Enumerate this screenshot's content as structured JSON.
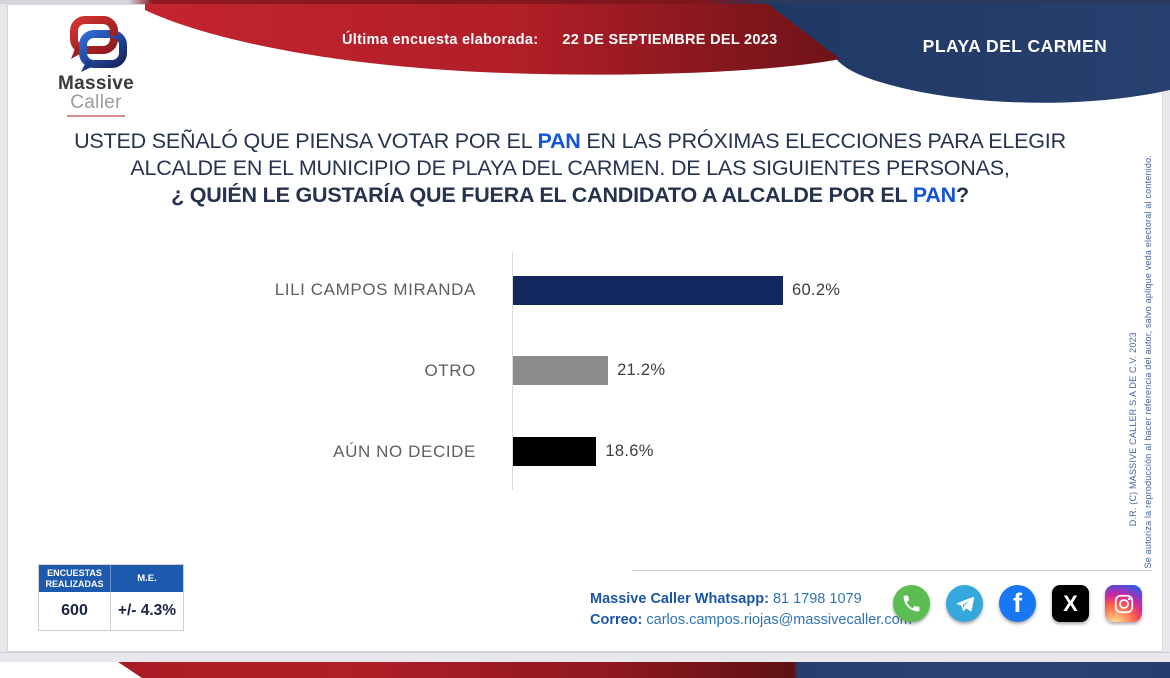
{
  "header": {
    "brand_line1": "Massive",
    "brand_line2": "Caller",
    "banner_label": "Última encuesta elaborada:",
    "banner_date": "22 DE SEPTIEMBRE DEL 2023",
    "location": "PLAYA DEL CARMEN"
  },
  "question": {
    "line1_pre": "USTED SEÑALÓ QUE PIENSA VOTAR POR EL ",
    "line1_party": "PAN",
    "line1_post": " EN LAS PRÓXIMAS ELECCIONES PARA ELEGIR",
    "line2": "ALCALDE EN EL MUNICIPIO DE PLAYA DEL CARMEN. DE LAS SIGUIENTES PERSONAS,",
    "line3_pre": "¿ QUIÉN LE GUSTARÍA QUE FUERA EL CANDIDATO A ALCALDE POR EL ",
    "line3_party": "PAN",
    "line3_post": "?"
  },
  "chart_data": {
    "type": "bar",
    "orientation": "horizontal",
    "categories": [
      "LILI CAMPOS MIRANDA",
      "OTRO",
      "AÚN NO DECIDE"
    ],
    "values": [
      60.2,
      21.2,
      18.6
    ],
    "value_labels": [
      "60.2%",
      "21.2%",
      "18.6%"
    ],
    "bar_colors": [
      "#12285f",
      "#8c8c8c",
      "#000000"
    ],
    "xlim": [
      0,
      100
    ],
    "grid": false,
    "legend": false,
    "title": ""
  },
  "stats": {
    "col1_header": "ENCUESTAS REALIZADAS",
    "col2_header": "M.E.",
    "col1_value": "600",
    "col2_value": "+/- 4.3%"
  },
  "contact": {
    "whatsapp_label": "Massive Caller Whatsapp:",
    "whatsapp_number": "81 1798 1079",
    "email_label": "Correo:",
    "email": "carlos.campos.riojas@massivecaller.com"
  },
  "social": {
    "icons": [
      "whatsapp",
      "telegram",
      "facebook",
      "x",
      "instagram"
    ]
  },
  "copyright": {
    "rights": "D.R. (C) MASSIVE CALLER S.A DE C.V. 2023",
    "notice": "Se autoriza la reproducción al hacer referencia del autor, salvo aplique veda electoral al contenido."
  },
  "colors": {
    "banner_red": "#b71f28",
    "banner_dark_red": "#6d1318",
    "banner_blue": "#253c6d",
    "party_blue": "#1355d8",
    "question_text": "#26334e",
    "table_header_blue": "#1d5aad",
    "contact_blue": "#1b55a8"
  }
}
